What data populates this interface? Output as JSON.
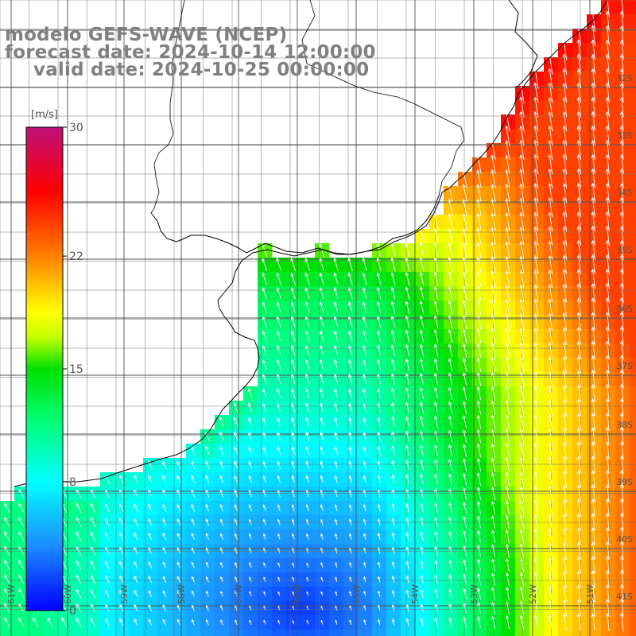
{
  "header": {
    "model": "modelo GEFS-WAVE (NCEP)",
    "forecast": "forecast date: 2024-10-14 12:00:00",
    "valid": "valid date: 2024-10-25 00:00:00"
  },
  "colorbar": {
    "unit": "[m/s]",
    "min": 0,
    "max": 30,
    "tick_labels": [
      "30",
      "22",
      "15",
      "8",
      "0"
    ],
    "tick_values": [
      30,
      22,
      15,
      8,
      0
    ],
    "color_stops": [
      {
        "v": 0,
        "c": "#0000ff"
      },
      {
        "v": 4,
        "c": "#1c8cff"
      },
      {
        "v": 8,
        "c": "#00ffff"
      },
      {
        "v": 11.5,
        "c": "#00ff80"
      },
      {
        "v": 15,
        "c": "#00e000"
      },
      {
        "v": 17,
        "c": "#c8ff00"
      },
      {
        "v": 18.5,
        "c": "#ffff00"
      },
      {
        "v": 22,
        "c": "#ff8000"
      },
      {
        "v": 26,
        "c": "#ff0000"
      },
      {
        "v": 30,
        "c": "#c0107a"
      }
    ]
  },
  "map": {
    "longitudes": [
      "61W",
      "60W",
      "59W",
      "58W",
      "57W",
      "56W",
      "55W",
      "54W",
      "53W",
      "52W",
      "51W"
    ],
    "latitudes": [
      "32S",
      "33S",
      "34S",
      "35S",
      "36S",
      "37S",
      "38S",
      "39S",
      "40S",
      "41S"
    ],
    "grid_on": true,
    "land_color": "#ffffff",
    "arrow_color": "#ffffff",
    "coast_color": "#000000"
  }
}
